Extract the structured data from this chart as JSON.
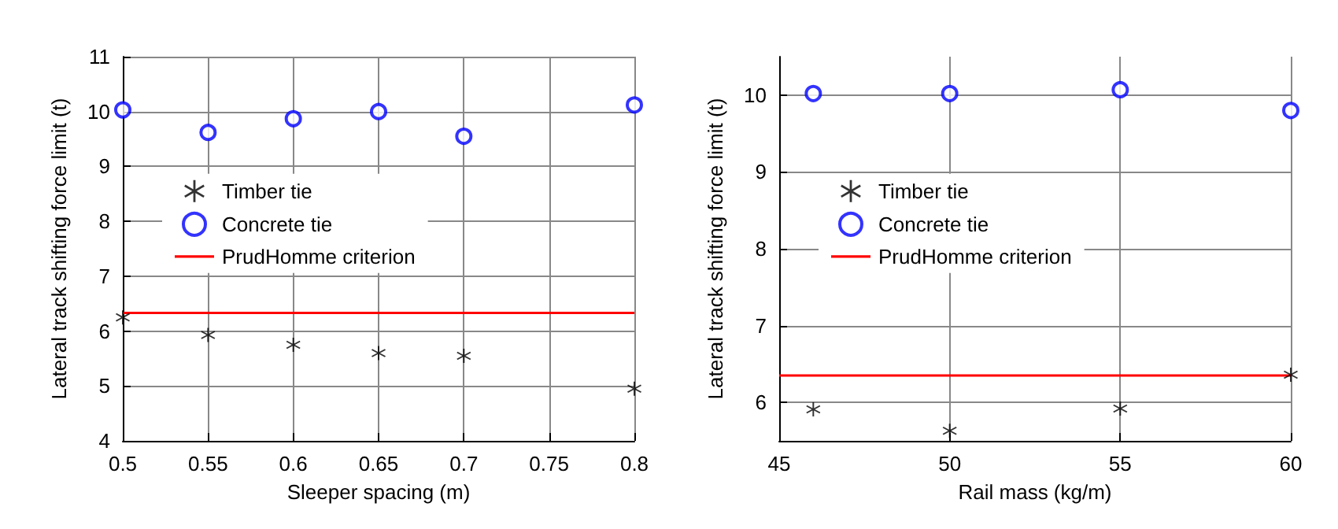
{
  "chart_data": [
    {
      "type": "scatter",
      "xlabel": "Sleeper spacing (m)",
      "ylabel": "Lateral track shifting force limit (t)",
      "x": [
        0.5,
        0.55,
        0.6,
        0.65,
        0.7,
        0.8
      ],
      "xlim": [
        0.5,
        0.8
      ],
      "xticks": [
        0.5,
        0.55,
        0.6,
        0.65,
        0.7,
        0.75,
        0.8
      ],
      "ylim": [
        4,
        11
      ],
      "yticks": [
        4,
        5,
        6,
        7,
        8,
        9,
        10,
        11
      ],
      "grid": true,
      "legend": "left",
      "series": [
        {
          "name": "Timber tie",
          "color": "#000000",
          "marker": "star",
          "values": [
            6.25,
            5.93,
            5.75,
            5.6,
            5.55,
            4.95
          ]
        },
        {
          "name": "Concrete tie",
          "color": "#0000ff",
          "marker": "circle",
          "values": [
            10.03,
            9.62,
            9.87,
            10.0,
            9.55,
            10.12
          ]
        },
        {
          "name": "PrudHomme criterion",
          "type": "line",
          "color": "#ff0000",
          "marker": "none",
          "x": [
            0.5,
            0.8
          ],
          "values": [
            6.33,
            6.33
          ]
        }
      ]
    },
    {
      "type": "scatter",
      "xlabel": "Rail mass (kg/m)",
      "ylabel": "Lateral track shifting force limit (t)",
      "x": [
        46,
        50,
        55,
        60
      ],
      "xlim": [
        45,
        60
      ],
      "xticks": [
        45,
        50,
        55,
        60
      ],
      "ylim": [
        5.5,
        10.5
      ],
      "yticks": [
        6,
        7,
        8,
        9,
        10
      ],
      "grid": true,
      "legend": "left",
      "series": [
        {
          "name": "Timber tie",
          "color": "#000000",
          "marker": "star",
          "values": [
            5.91,
            5.63,
            5.92,
            6.36
          ]
        },
        {
          "name": "Concrete tie",
          "color": "#0000ff",
          "marker": "circle",
          "values": [
            10.02,
            10.02,
            10.07,
            9.8
          ]
        },
        {
          "name": "PrudHomme criterion",
          "type": "line",
          "color": "#ff0000",
          "marker": "none",
          "x": [
            45,
            60
          ],
          "values": [
            6.35,
            6.35
          ]
        }
      ]
    }
  ]
}
